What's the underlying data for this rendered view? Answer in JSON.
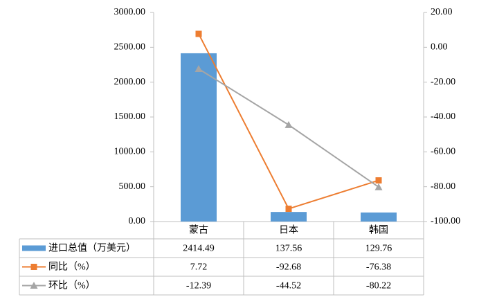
{
  "chart_data": {
    "type": "bar-line",
    "categories": [
      "蒙古",
      "日本",
      "韩国"
    ],
    "series": [
      {
        "name": "进口总值（万美元）",
        "type": "bar",
        "color": "#5b9bd5",
        "values": [
          2414.49,
          137.56,
          129.76
        ]
      },
      {
        "name": "同比（%）",
        "type": "line",
        "marker": "square",
        "axis": "y2",
        "color": "#ed7d31",
        "values": [
          7.72,
          -92.68,
          -76.38
        ]
      },
      {
        "name": "环比（%）",
        "type": "line",
        "marker": "triangle",
        "axis": "y2",
        "color": "#a5a5a5",
        "values": [
          -12.39,
          -44.52,
          -80.22
        ]
      }
    ],
    "ylim": [
      0,
      3000
    ],
    "yticks": [
      {
        "value": 0,
        "label": "0.00"
      },
      {
        "value": 500,
        "label": "500.00"
      },
      {
        "value": 1000,
        "label": "1000.00"
      },
      {
        "value": 1500,
        "label": "1500.00"
      },
      {
        "value": 2000,
        "label": "2000.00"
      },
      {
        "value": 2500,
        "label": "2500.00"
      },
      {
        "value": 3000,
        "label": "3000.00"
      }
    ],
    "y2lim": [
      -100,
      20
    ],
    "y2ticks": [
      {
        "value": -100,
        "label": "-100.00"
      },
      {
        "value": -80,
        "label": "-80.00"
      },
      {
        "value": -60,
        "label": "-60.00"
      },
      {
        "value": -40,
        "label": "-40.00"
      },
      {
        "value": -20,
        "label": "-20.00"
      },
      {
        "value": 0,
        "label": "0.00"
      },
      {
        "value": 20,
        "label": "20.00"
      }
    ],
    "grid": false,
    "legend": "data-table"
  }
}
